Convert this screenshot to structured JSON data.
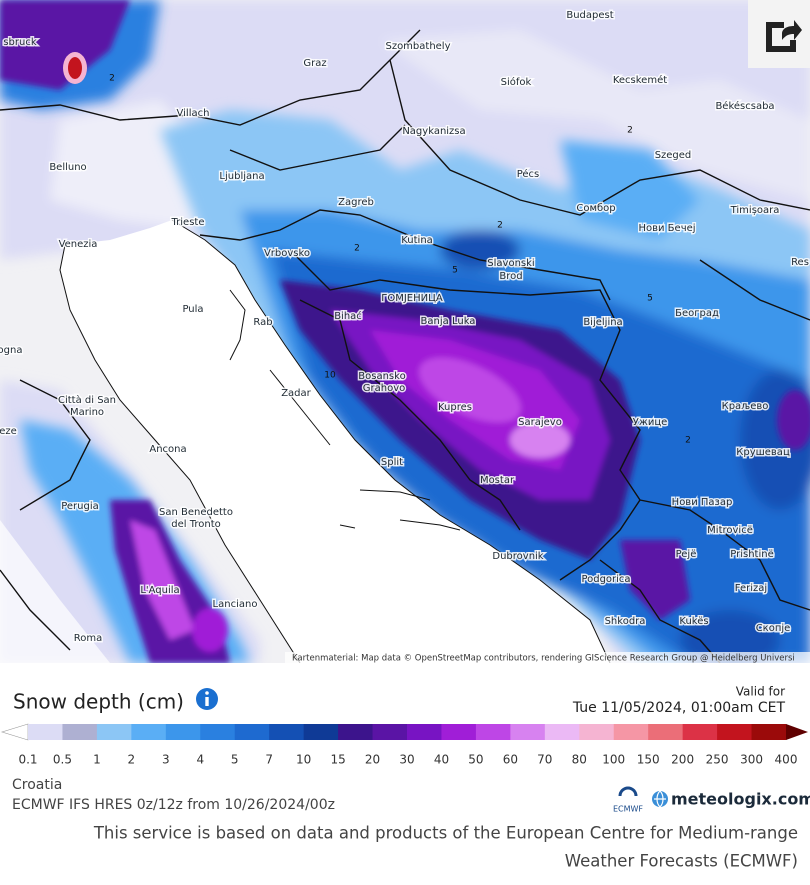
{
  "map": {
    "labels": [
      "sbruck",
      "Budapest",
      "Szombathely",
      "Graz",
      "Siófok",
      "Kecskemét",
      "Békéscsaba",
      "Villach",
      "Nagykanizsa",
      "Szeged",
      "Belluno",
      "Ljubljana",
      "Pécs",
      "Сомбор",
      "Timișoara",
      "Zagreb",
      "Trieste",
      "Нови Бечеј",
      "Venezia",
      "Kutina",
      "Slavonski",
      "Brod",
      "Vrbovsko",
      "Res",
      "ГОМЈЕНИЦА",
      "Pula",
      "Rab",
      "Bihać",
      "Banja Luka",
      "Bijeljina",
      "Београд",
      "ogna",
      "Città di San",
      "Marino",
      "Bosansko",
      "Grahovo",
      "Zadar",
      "Kupres",
      "Sarajevo",
      "Ужице",
      "Краљево",
      "eze",
      "Ancona",
      "Split",
      "Крушевац",
      "Mostar",
      "Perugia",
      "San Benedetto",
      "del Tronto",
      "Нови Пазар",
      "Mitrovicë",
      "Dubrovnik",
      "Pejë",
      "Prishtinë",
      "L'Aquila",
      "Podgorica",
      "Ferizaj",
      "Lanciano",
      "Shkodra",
      "Kukës",
      "Roma",
      "Скопје"
    ],
    "contour_labels": [
      "2",
      "2",
      "2",
      "2",
      "2",
      "5",
      "5",
      "10"
    ],
    "attribution": "Kartenmaterial: Map data © OpenStreetMap contributors, rendering GIScience Research Group @ Heidelberg Universi"
  },
  "legend": {
    "title": "Snow depth (cm)",
    "valid_label": "Valid for",
    "valid_time": "Tue 11/05/2024, 01:00am CET",
    "scale": {
      "values": [
        0.1,
        0.5,
        1,
        2,
        3,
        4,
        5,
        7,
        10,
        15,
        20,
        30,
        40,
        50,
        60,
        70,
        80,
        100,
        150,
        200,
        250,
        300,
        400
      ],
      "colors": [
        "#dcdcf5",
        "#aeb0d2",
        "#8cc6f5",
        "#5aaef5",
        "#3c96eb",
        "#2a80e0",
        "#1e6ad0",
        "#1450b4",
        "#0f3a96",
        "#3c148c",
        "#5a14a5",
        "#7814c3",
        "#a01ed7",
        "#be46e6",
        "#d782f0",
        "#ebb9f5",
        "#f5b4d2",
        "#f596a5",
        "#eb6e78",
        "#dc3246",
        "#c3141e",
        "#9b0a0a",
        "#5f0000"
      ]
    }
  },
  "info": {
    "region": "Croatia",
    "model": "ECMWF IFS HRES 0z/12z from 10/26/2024/00z",
    "ecmwf": "ECMWF",
    "brand": "meteologix.com"
  },
  "footer": [
    "This service is based on data and products of the European Centre for Medium-range",
    "Weather Forecasts (ECMWF)"
  ]
}
